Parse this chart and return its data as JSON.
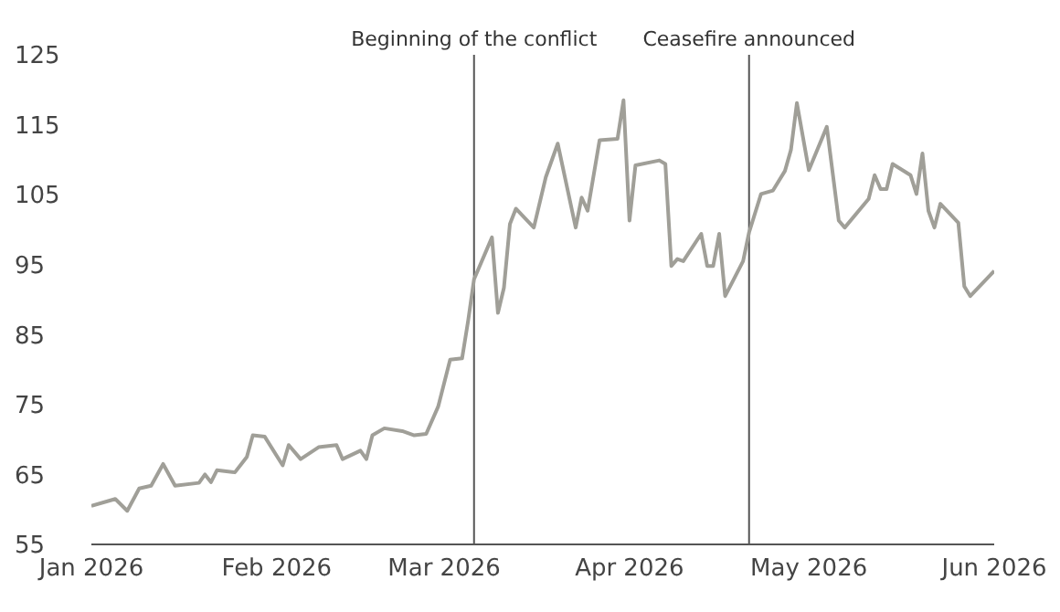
{
  "chart_data": {
    "type": "line",
    "x": [
      "2026-01-01",
      "2026-01-05",
      "2026-01-07",
      "2026-01-09",
      "2026-01-11",
      "2026-01-13",
      "2026-01-15",
      "2026-01-19",
      "2026-01-20",
      "2026-01-21",
      "2026-01-22",
      "2026-01-25",
      "2026-01-27",
      "2026-01-28",
      "2026-01-30",
      "2026-02-02",
      "2026-02-03",
      "2026-02-05",
      "2026-02-08",
      "2026-02-11",
      "2026-02-12",
      "2026-02-15",
      "2026-02-16",
      "2026-02-17",
      "2026-02-19",
      "2026-02-22",
      "2026-02-24",
      "2026-02-26",
      "2026-02-28",
      "2026-03-02",
      "2026-03-04",
      "2026-03-05",
      "2026-03-06",
      "2026-03-09",
      "2026-03-10",
      "2026-03-11",
      "2026-03-12",
      "2026-03-13",
      "2026-03-16",
      "2026-03-18",
      "2026-03-20",
      "2026-03-23",
      "2026-03-24",
      "2026-03-25",
      "2026-03-27",
      "2026-03-30",
      "2026-03-31",
      "2026-04-01",
      "2026-04-02",
      "2026-04-06",
      "2026-04-07",
      "2026-04-08",
      "2026-04-09",
      "2026-04-10",
      "2026-04-13",
      "2026-04-14",
      "2026-04-15",
      "2026-04-16",
      "2026-04-17",
      "2026-04-20",
      "2026-04-21",
      "2026-04-23",
      "2026-04-25",
      "2026-04-27",
      "2026-04-28",
      "2026-04-29",
      "2026-05-01",
      "2026-05-04",
      "2026-05-06",
      "2026-05-07",
      "2026-05-11",
      "2026-05-12",
      "2026-05-13",
      "2026-05-14",
      "2026-05-15",
      "2026-05-18",
      "2026-05-19",
      "2026-05-20",
      "2026-05-21",
      "2026-05-22",
      "2026-05-23",
      "2026-05-26",
      "2026-05-27",
      "2026-05-28",
      "2026-06-01"
    ],
    "series": [
      {
        "color": "#a09f98",
        "values": [
          60.5,
          61.5,
          59.8,
          63,
          63.4,
          66.5,
          63.4,
          63.8,
          65,
          63.9,
          65.6,
          65.3,
          67.5,
          70.6,
          70.4,
          66.3,
          69.2,
          67.2,
          68.9,
          69.2,
          67.2,
          68.4,
          67.2,
          70.6,
          71.6,
          71.2,
          70.6,
          70.8,
          74.7,
          81.4,
          81.6,
          86.9,
          92.9,
          98.9,
          88.1,
          91.7,
          100.8,
          103,
          100.3,
          107.5,
          112.3,
          100.3,
          104.6,
          102.7,
          112.8,
          113,
          118.5,
          101.3,
          109.2,
          109.9,
          109.4,
          94.8,
          95.8,
          95.5,
          99.4,
          94.8,
          94.8,
          99.4,
          90.5,
          95.5,
          99.6,
          105.1,
          105.6,
          108.4,
          111.4,
          118.1,
          108.5,
          114.7,
          101.3,
          100.3,
          104.4,
          107.8,
          105.8,
          105.8,
          109.4,
          107.8,
          105.1,
          110.9,
          102.7,
          100.3,
          103.7,
          101,
          91.9,
          90.5,
          94.1
        ]
      }
    ],
    "xlim": [
      "2026-01-01",
      "2026-06-01"
    ],
    "xticks": [
      {
        "value": "2026-01-01",
        "label": "Jan 2026"
      },
      {
        "value": "2026-02-01",
        "label": "Feb 2026"
      },
      {
        "value": "2026-03-01",
        "label": "Mar 2026"
      },
      {
        "value": "2026-04-01",
        "label": "Apr 2026"
      },
      {
        "value": "2026-05-01",
        "label": "May 2026"
      },
      {
        "value": "2026-06-01",
        "label": "Jun 2026"
      }
    ],
    "ylim": [
      55,
      125
    ],
    "yticks": [
      55,
      65,
      75,
      85,
      95,
      105,
      115,
      125
    ],
    "ref_lines": [
      {
        "axis": "x",
        "value": "2026-03-06",
        "label": "Beginning of the conflict",
        "color": "#555555"
      },
      {
        "axis": "x",
        "value": "2026-04-21",
        "label": "Ceasefire announced",
        "color": "#555555"
      }
    ],
    "grid": false,
    "legend": false,
    "marker": "none",
    "line_style": "solid"
  }
}
